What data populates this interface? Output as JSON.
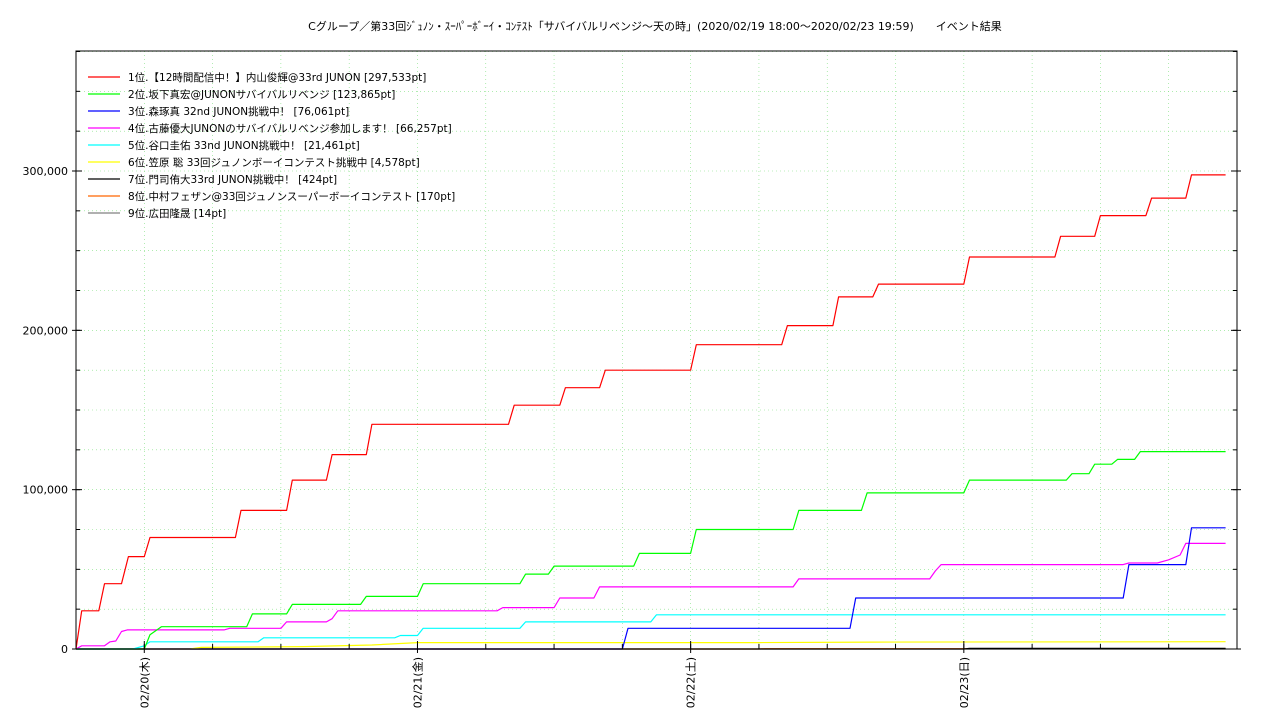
{
  "chart_data": {
    "type": "line",
    "title": "Cグループ／第33回ｼﾞｭﾉﾝ・ｽｰﾊﾟｰﾎﾞｰｲ・ｺﾝﾃｽﾄ「サバイバルリベンジ〜天の時」(2020/02/19 18:00〜2020/02/23 19:59)　　イベント結果",
    "xlabel": "",
    "ylabel": "",
    "x_unit": "hours since 2020/02/19 18:00",
    "xlim": [
      0,
      102
    ],
    "ylim": [
      0,
      300000
    ],
    "grid": true,
    "legend_position": "top-left",
    "x_ticks": [
      {
        "x": 6,
        "label": "02/20(木)"
      },
      {
        "x": 30,
        "label": "02/21(金)"
      },
      {
        "x": 54,
        "label": "02/22(土)"
      },
      {
        "x": 78,
        "label": "02/23(日)"
      }
    ],
    "y_ticks": [
      {
        "y": 0,
        "label": "0"
      },
      {
        "y": 100000,
        "label": "100,000"
      },
      {
        "y": 200000,
        "label": "200,000"
      },
      {
        "y": 300000,
        "label": "300,000"
      }
    ],
    "series": [
      {
        "name": "1位.【12時間配信中！】内山俊輝@33rd JUNON [297,533pt]",
        "color": "#ff0000",
        "points": [
          [
            0,
            0
          ],
          [
            0.5,
            24000
          ],
          [
            2,
            24000
          ],
          [
            2.5,
            41000
          ],
          [
            4,
            41000
          ],
          [
            4.6,
            58000
          ],
          [
            6,
            58000
          ],
          [
            6.5,
            70000
          ],
          [
            14,
            70000
          ],
          [
            14.5,
            87000
          ],
          [
            18.5,
            87000
          ],
          [
            19,
            106000
          ],
          [
            22,
            106000
          ],
          [
            22.5,
            122000
          ],
          [
            25.5,
            122000
          ],
          [
            26,
            141000
          ],
          [
            38,
            141000
          ],
          [
            38.5,
            153000
          ],
          [
            42.5,
            153000
          ],
          [
            43,
            164000
          ],
          [
            46,
            164000
          ],
          [
            46.5,
            175000
          ],
          [
            54,
            175000
          ],
          [
            54.5,
            191000
          ],
          [
            62,
            191000
          ],
          [
            62.5,
            203000
          ],
          [
            66.5,
            203000
          ],
          [
            67,
            221000
          ],
          [
            70,
            221000
          ],
          [
            70.5,
            229000
          ],
          [
            78,
            229000
          ],
          [
            78.5,
            246000
          ],
          [
            86,
            246000
          ],
          [
            86.5,
            259000
          ],
          [
            89.5,
            259000
          ],
          [
            90,
            272000
          ],
          [
            94,
            272000
          ],
          [
            94.5,
            283000
          ],
          [
            97.5,
            283000
          ],
          [
            98,
            297533
          ],
          [
            101,
            297533
          ]
        ]
      },
      {
        "name": "2位.坂下真宏@JUNONサバイバルリベンジ [123,865pt]",
        "color": "#00ff00",
        "points": [
          [
            0,
            0
          ],
          [
            6,
            0
          ],
          [
            6.5,
            9000
          ],
          [
            7.5,
            14000
          ],
          [
            15,
            14000
          ],
          [
            15.5,
            22000
          ],
          [
            18.5,
            22000
          ],
          [
            19,
            28000
          ],
          [
            25,
            28000
          ],
          [
            25.5,
            33000
          ],
          [
            30,
            33000
          ],
          [
            30.5,
            41000
          ],
          [
            39,
            41000
          ],
          [
            39.5,
            47000
          ],
          [
            41.5,
            47000
          ],
          [
            42,
            52000
          ],
          [
            49,
            52000
          ],
          [
            49.5,
            60000
          ],
          [
            54,
            60000
          ],
          [
            54.5,
            75000
          ],
          [
            63,
            75000
          ],
          [
            63.5,
            87000
          ],
          [
            69,
            87000
          ],
          [
            69.5,
            98000
          ],
          [
            78,
            98000
          ],
          [
            78.5,
            106000
          ],
          [
            87,
            106000
          ],
          [
            87.5,
            110000
          ],
          [
            89,
            110000
          ],
          [
            89.5,
            116000
          ],
          [
            91,
            116000
          ],
          [
            91.5,
            119000
          ],
          [
            93,
            119000
          ],
          [
            93.5,
            123865
          ],
          [
            101,
            123865
          ]
        ]
      },
      {
        "name": "3位.森琢真 32nd JUNON挑戦中！ [76,061pt]",
        "color": "#0000ff",
        "points": [
          [
            0,
            0
          ],
          [
            48,
            0
          ],
          [
            48.5,
            13000
          ],
          [
            68,
            13000
          ],
          [
            68.5,
            32000
          ],
          [
            92,
            32000
          ],
          [
            92.5,
            53000
          ],
          [
            97.5,
            53000
          ],
          [
            98,
            76061
          ],
          [
            101,
            76061
          ]
        ]
      },
      {
        "name": "4位.古藤優大JUNONのサバイバルリベンジ参加します！ [66,257pt]",
        "color": "#ff00ff",
        "points": [
          [
            0,
            0
          ],
          [
            0.5,
            2000
          ],
          [
            2.5,
            2000
          ],
          [
            3,
            4500
          ],
          [
            3.5,
            5000
          ],
          [
            4,
            11000
          ],
          [
            4.5,
            12000
          ],
          [
            13,
            12000
          ],
          [
            13.5,
            13000
          ],
          [
            18,
            13000
          ],
          [
            18.5,
            17000
          ],
          [
            22,
            17000
          ],
          [
            22.5,
            19000
          ],
          [
            23,
            24000
          ],
          [
            37,
            24000
          ],
          [
            37.5,
            26000
          ],
          [
            42,
            26000
          ],
          [
            42.5,
            32000
          ],
          [
            45.5,
            32000
          ],
          [
            46,
            39000
          ],
          [
            63,
            39000
          ],
          [
            63.5,
            44000
          ],
          [
            75,
            44000
          ],
          [
            75.5,
            49000
          ],
          [
            76,
            53000
          ],
          [
            92,
            53000
          ],
          [
            92.5,
            54000
          ],
          [
            95,
            54000
          ],
          [
            96,
            56000
          ],
          [
            97,
            59000
          ],
          [
            97.5,
            66257
          ],
          [
            101,
            66257
          ]
        ]
      },
      {
        "name": "5位.谷口圭佑 33nd JUNON挑戦中！ [21,461pt]",
        "color": "#00ffff",
        "points": [
          [
            0,
            0
          ],
          [
            5,
            0
          ],
          [
            6,
            2000
          ],
          [
            6.5,
            4500
          ],
          [
            16,
            4500
          ],
          [
            16.5,
            7000
          ],
          [
            28,
            7000
          ],
          [
            28.5,
            8500
          ],
          [
            30,
            8500
          ],
          [
            30.5,
            13000
          ],
          [
            39,
            13000
          ],
          [
            39.5,
            17000
          ],
          [
            50.5,
            17000
          ],
          [
            51,
            21461
          ],
          [
            101,
            21461
          ]
        ]
      },
      {
        "name": "6位.笠原 聡 33回ジュノンボーイコンテスト挑戦中 [4,578pt]",
        "color": "#ffff00",
        "points": [
          [
            0,
            0
          ],
          [
            10,
            0
          ],
          [
            11,
            1000
          ],
          [
            20,
            1500
          ],
          [
            26,
            2500
          ],
          [
            30,
            4000
          ],
          [
            60,
            4000
          ],
          [
            70,
            4300
          ],
          [
            101,
            4578
          ]
        ]
      },
      {
        "name": "7位.門司侑大33rd JUNON挑戦中！ [424pt]",
        "color": "#000000",
        "points": [
          [
            0,
            0
          ],
          [
            78,
            0
          ],
          [
            78.5,
            424
          ],
          [
            101,
            424
          ]
        ]
      },
      {
        "name": "8位.中村フェザン@33回ジュノンスーパーボーイコンテスト [170pt]",
        "color": "#ff6600",
        "points": [
          [
            0,
            0
          ],
          [
            60,
            0
          ],
          [
            60.5,
            170
          ],
          [
            101,
            170
          ]
        ]
      },
      {
        "name": "9位.広田隆晟 [14pt]",
        "color": "#808080",
        "points": [
          [
            0,
            0
          ],
          [
            40,
            0
          ],
          [
            40.5,
            14
          ],
          [
            101,
            14
          ]
        ]
      }
    ]
  }
}
